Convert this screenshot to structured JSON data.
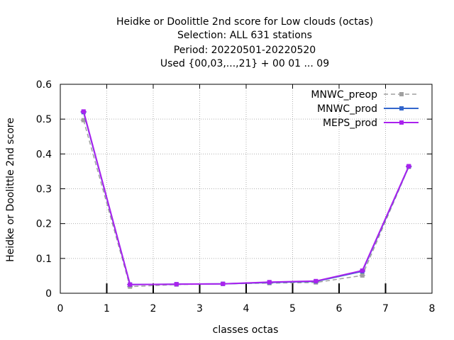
{
  "title_lines": [
    "Heidke or Doolittle 2nd score  for Low clouds (octas)",
    "Selection: ALL    631 stations",
    "Period: 20220501-20220520",
    "Used {00,03,...,21} + 00 01 ... 09"
  ],
  "chart_data": {
    "type": "line",
    "title": "Heidke or Doolittle 2nd score  for Low clouds (octas)",
    "xlabel": "classes octas",
    "ylabel": "Heidke or Doolittle 2nd score",
    "xlim": [
      0,
      8
    ],
    "ylim": [
      0,
      0.6
    ],
    "x_ticks": [
      "0",
      "1",
      "2",
      "3",
      "4",
      "5",
      "6",
      "7",
      "8"
    ],
    "y_ticks": [
      "0",
      "0.1",
      "0.2",
      "0.3",
      "0.4",
      "0.5",
      "0.6"
    ],
    "grid": true,
    "legend_position": "top-right",
    "x": [
      0.5,
      1.5,
      2.5,
      3.5,
      4.5,
      5.5,
      6.5,
      7.5
    ],
    "series": [
      {
        "name": "MNWC_preop",
        "color": "#a0a0a0",
        "dash": true,
        "values": [
          0.497,
          0.019,
          0.025,
          0.027,
          0.029,
          0.031,
          0.051,
          0.363
        ]
      },
      {
        "name": "MNWC_prod",
        "color": "#3366cc",
        "dash": false,
        "values": [
          0.52,
          0.025,
          0.026,
          0.027,
          0.031,
          0.034,
          0.063,
          0.364
        ]
      },
      {
        "name": "MEPS_prod",
        "color": "#aa22ee",
        "dash": false,
        "values": [
          0.522,
          0.025,
          0.026,
          0.027,
          0.032,
          0.035,
          0.065,
          0.365
        ]
      }
    ]
  }
}
